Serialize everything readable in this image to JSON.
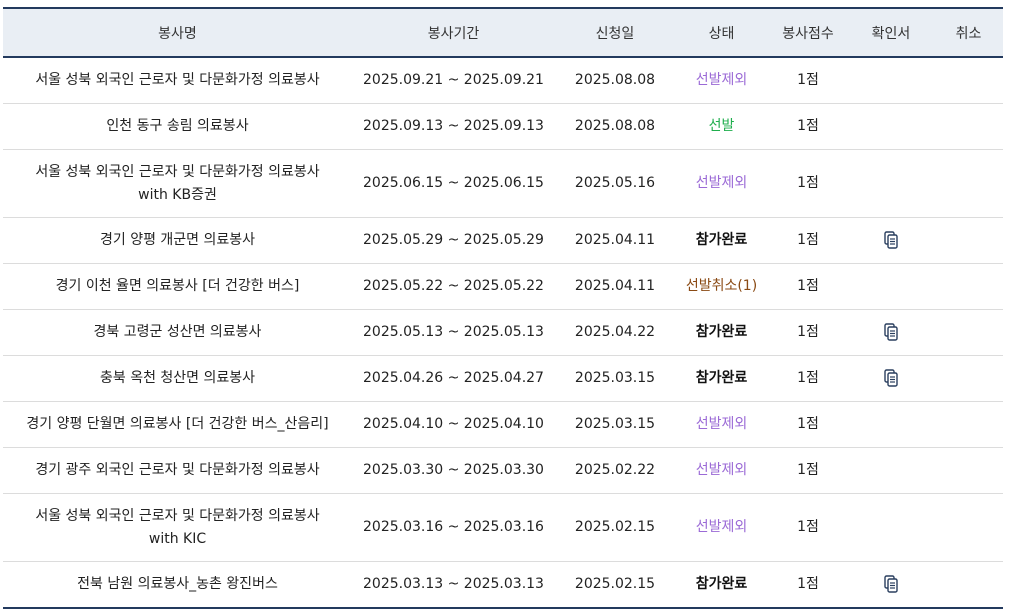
{
  "table": {
    "headers": [
      "봉사명",
      "봉사기간",
      "신청일",
      "상태",
      "봉사점수",
      "확인서",
      "취소"
    ],
    "rows": [
      {
        "name": "서울 성북 외국인 근로자 및 다문화가정 의료봉사",
        "period": "2025.09.21 ~ 2025.09.21",
        "applied": "2025.08.08",
        "status": "선발제외",
        "status_type": "excluded",
        "score": "1점",
        "certificate": false
      },
      {
        "name": "인천 동구 송림 의료봉사",
        "period": "2025.09.13 ~ 2025.09.13",
        "applied": "2025.08.08",
        "status": "선발",
        "status_type": "selected",
        "score": "1점",
        "certificate": false
      },
      {
        "name": "서울 성북 외국인 근로자 및 다문화가정 의료봉사\nwith KB증권",
        "period": "2025.06.15 ~ 2025.06.15",
        "applied": "2025.05.16",
        "status": "선발제외",
        "status_type": "excluded",
        "score": "1점",
        "certificate": false
      },
      {
        "name": "경기 양평 개군면 의료봉사",
        "period": "2025.05.29 ~ 2025.05.29",
        "applied": "2025.04.11",
        "status": "참가완료",
        "status_type": "complete",
        "score": "1점",
        "certificate": true
      },
      {
        "name": "경기 이천 율면 의료봉사 [더 건강한 버스]",
        "period": "2025.05.22 ~ 2025.05.22",
        "applied": "2025.04.11",
        "status": "선발취소(1)",
        "status_type": "cancel",
        "score": "1점",
        "certificate": false
      },
      {
        "name": "경북 고령군 성산면 의료봉사",
        "period": "2025.05.13 ~ 2025.05.13",
        "applied": "2025.04.22",
        "status": "참가완료",
        "status_type": "complete",
        "score": "1점",
        "certificate": true
      },
      {
        "name": "충북 옥천 청산면 의료봉사",
        "period": "2025.04.26 ~ 2025.04.27",
        "applied": "2025.03.15",
        "status": "참가완료",
        "status_type": "complete",
        "score": "1점",
        "certificate": true
      },
      {
        "name": "경기 양평 단월면 의료봉사 [더 건강한 버스_산음리]",
        "period": "2025.04.10 ~ 2025.04.10",
        "applied": "2025.03.15",
        "status": "선발제외",
        "status_type": "excluded",
        "score": "1점",
        "certificate": false
      },
      {
        "name": "경기 광주 외국인 근로자 및 다문화가정 의료봉사",
        "period": "2025.03.30 ~ 2025.03.30",
        "applied": "2025.02.22",
        "status": "선발제외",
        "status_type": "excluded",
        "score": "1점",
        "certificate": false
      },
      {
        "name": "서울 성북 외국인 근로자 및 다문화가정 의료봉사\nwith KIC",
        "period": "2025.03.16 ~ 2025.03.16",
        "applied": "2025.02.15",
        "status": "선발제외",
        "status_type": "excluded",
        "score": "1점",
        "certificate": false
      },
      {
        "name": "전북 남원 의료봉사_농촌 왕진버스",
        "period": "2025.03.13 ~ 2025.03.13",
        "applied": "2025.02.15",
        "status": "참가완료",
        "status_type": "complete",
        "score": "1점",
        "certificate": true
      }
    ]
  },
  "icons": {
    "certificate": "document-copy-icon"
  },
  "colors": {
    "header_border": "#233a5e",
    "header_bg": "#e9eef4",
    "excluded": "#9b6ad6",
    "selected": "#1fae4d",
    "cancel": "#8a4a14"
  }
}
